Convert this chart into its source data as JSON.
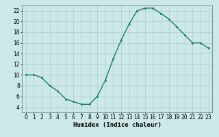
{
  "x": [
    0,
    1,
    2,
    3,
    4,
    5,
    6,
    7,
    8,
    9,
    10,
    11,
    12,
    13,
    14,
    15,
    16,
    17,
    18,
    19,
    20,
    21,
    22,
    23
  ],
  "y": [
    10,
    10,
    9.5,
    8,
    7,
    5.5,
    5,
    4.5,
    4.5,
    6,
    9,
    13,
    16.5,
    19.5,
    22,
    22.5,
    22.5,
    21.5,
    20.5,
    19,
    17.5,
    16,
    16,
    15
  ],
  "xlim": [
    -0.5,
    23.5
  ],
  "ylim": [
    3,
    23
  ],
  "yticks": [
    4,
    6,
    8,
    10,
    12,
    14,
    16,
    18,
    20,
    22
  ],
  "xticks": [
    0,
    1,
    2,
    3,
    4,
    5,
    6,
    7,
    8,
    9,
    10,
    11,
    12,
    13,
    14,
    15,
    16,
    17,
    18,
    19,
    20,
    21,
    22,
    23
  ],
  "xlabel": "Humidex (Indice chaleur)",
  "line_color": "#1a7a6e",
  "marker_color": "#1a7a6e",
  "bg_color": "#cce8e8",
  "grid_color": "#aacfcf",
  "tick_fontsize": 5.5,
  "label_fontsize": 6.5,
  "marker_size": 2.0,
  "line_width": 1.0
}
